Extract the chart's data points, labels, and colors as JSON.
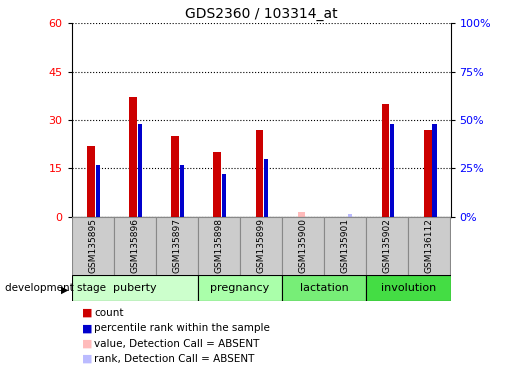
{
  "title": "GDS2360 / 103314_at",
  "samples": [
    "GSM135895",
    "GSM135896",
    "GSM135897",
    "GSM135898",
    "GSM135899",
    "GSM135900",
    "GSM135901",
    "GSM135902",
    "GSM136112"
  ],
  "red_bars": [
    22,
    37,
    25,
    20,
    27,
    0,
    0,
    35,
    27
  ],
  "blue_bars": [
    27,
    48,
    27,
    22,
    30,
    0,
    0,
    48,
    48
  ],
  "absent_value": [
    0,
    0,
    0,
    0,
    0,
    1.5,
    0,
    0,
    0
  ],
  "absent_rank": [
    0,
    0,
    0,
    0,
    0,
    0,
    1.5,
    0,
    0
  ],
  "stage_groups": [
    {
      "label": "puberty",
      "start": 0,
      "end": 3
    },
    {
      "label": "pregnancy",
      "start": 3,
      "end": 5
    },
    {
      "label": "lactation",
      "start": 5,
      "end": 7
    },
    {
      "label": "involution",
      "start": 7,
      "end": 9
    }
  ],
  "stage_colors": [
    "#ccffcc",
    "#aaffaa",
    "#77ee77",
    "#44dd44"
  ],
  "ylim_left": [
    0,
    60
  ],
  "ylim_right": [
    0,
    100
  ],
  "yticks_left": [
    0,
    15,
    30,
    45,
    60
  ],
  "yticks_right": [
    0,
    25,
    50,
    75,
    100
  ],
  "ytick_labels_left": [
    "0",
    "15",
    "30",
    "45",
    "60"
  ],
  "ytick_labels_right": [
    "0%",
    "25%",
    "50%",
    "75%",
    "100%"
  ],
  "red_color": "#cc0000",
  "blue_color": "#0000cc",
  "absent_value_color": "#ffbbbb",
  "absent_rank_color": "#bbbbff",
  "plot_bg": "#ffffff",
  "sample_bg": "#cccccc"
}
